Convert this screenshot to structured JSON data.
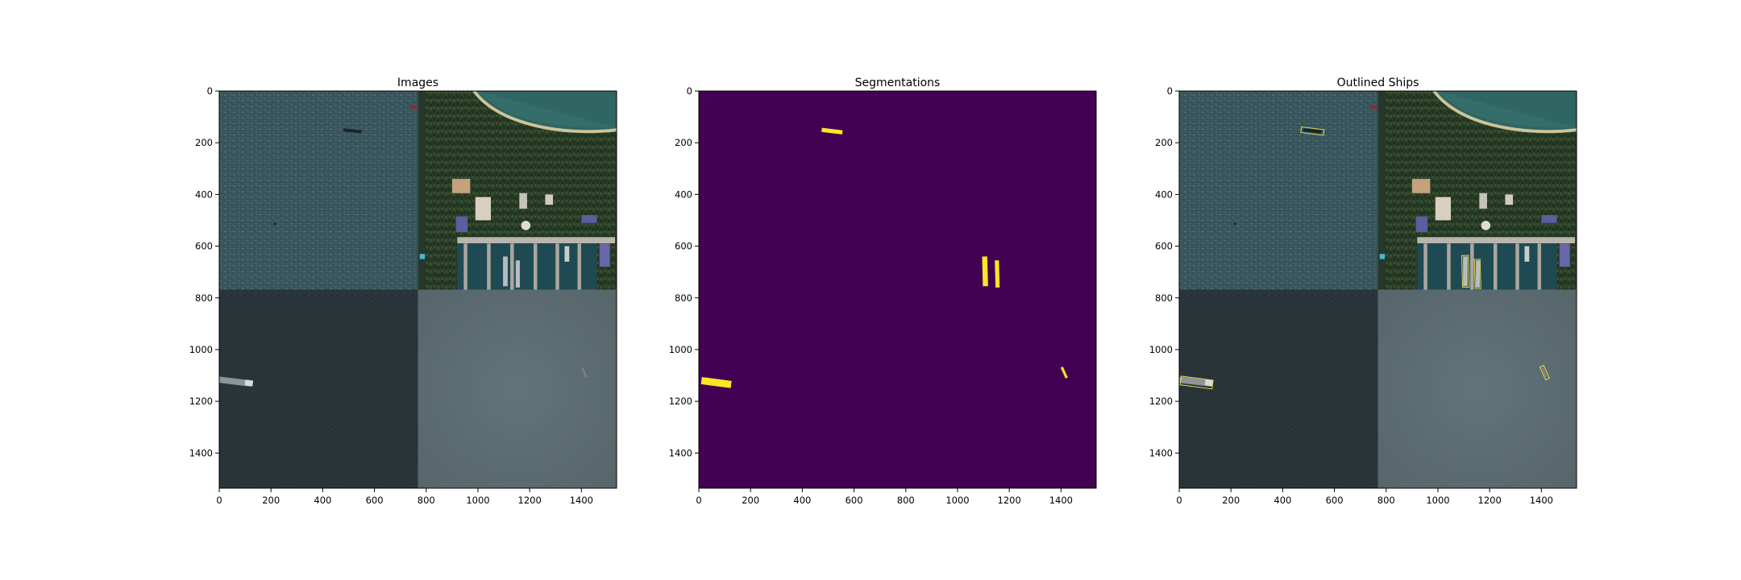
{
  "figure": {
    "panels": [
      {
        "title": "Images",
        "kind": "satellite-mosaic",
        "xlim": [
          0,
          1536
        ],
        "ylim": [
          1536,
          0
        ],
        "xticks": [
          0,
          200,
          400,
          600,
          800,
          1000,
          1200,
          1400
        ],
        "yticks": [
          0,
          200,
          400,
          600,
          800,
          1000,
          1200,
          1400
        ]
      },
      {
        "title": "Segmentations",
        "kind": "mask",
        "xlim": [
          0,
          1536
        ],
        "ylim": [
          1536,
          0
        ],
        "xticks": [
          0,
          200,
          400,
          600,
          800,
          1000,
          1200,
          1400
        ],
        "yticks": [
          0,
          200,
          400,
          600,
          800,
          1000,
          1200,
          1400
        ]
      },
      {
        "title": "Outlined Ships",
        "kind": "satellite-mosaic-outlined",
        "xlim": [
          0,
          1536
        ],
        "ylim": [
          1536,
          0
        ],
        "xticks": [
          0,
          200,
          400,
          600,
          800,
          1000,
          1200,
          1400
        ],
        "yticks": [
          0,
          200,
          400,
          600,
          800,
          1000,
          1200,
          1400
        ]
      }
    ],
    "colors": {
      "mask_background": "#440154",
      "mask_foreground": "#fde725",
      "outline": "#e8e04a",
      "sea_choppy": "#3a5660",
      "sea_dark": "#263236",
      "sea_calm": "#5c6a6f",
      "land": "#2b3f28"
    },
    "ships": [
      {
        "x1": 475,
        "y1": 150,
        "x2": 555,
        "y2": 160,
        "width": 16
      },
      {
        "x1": 1105,
        "y1": 640,
        "x2": 1108,
        "y2": 755,
        "width": 20
      },
      {
        "x1": 1152,
        "y1": 655,
        "x2": 1155,
        "y2": 760,
        "width": 16
      },
      {
        "x1": 10,
        "y1": 1120,
        "x2": 125,
        "y2": 1135,
        "width": 28
      },
      {
        "x1": 1403,
        "y1": 1068,
        "x2": 1422,
        "y2": 1110,
        "width": 10
      }
    ]
  }
}
